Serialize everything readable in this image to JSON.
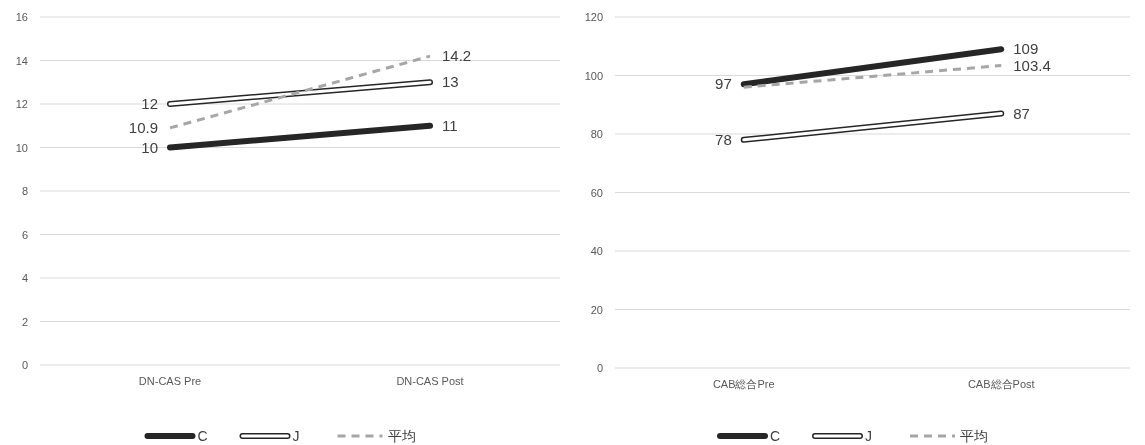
{
  "chart_data": [
    {
      "type": "line",
      "categories": [
        "DN-CAS Pre",
        "DN-CAS Post"
      ],
      "ylim": [
        0,
        16
      ],
      "yticks": [
        0,
        2,
        4,
        6,
        8,
        10,
        12,
        14,
        16
      ],
      "grid": "y",
      "legend": "bottom",
      "data_labels": true,
      "series": [
        {
          "name": "C",
          "color": "#262626",
          "values": [
            10,
            11
          ]
        },
        {
          "name": "J",
          "color": "#ffffff",
          "values": [
            12,
            13
          ]
        },
        {
          "name": "平均",
          "color": "#a6a6a6",
          "line_style": "dashed",
          "values": [
            10.9,
            14.2
          ]
        }
      ]
    },
    {
      "type": "line",
      "categories": [
        "CAB総合Pre",
        "CAB総合Post"
      ],
      "ylim": [
        0,
        120
      ],
      "yticks": [
        0,
        20,
        40,
        60,
        80,
        100,
        120
      ],
      "grid": "y",
      "legend": "bottom",
      "series": [
        {
          "name": "C",
          "color": "#262626",
          "values": [
            97,
            109
          ],
          "value_labels": [
            "97",
            "109"
          ]
        },
        {
          "name": "J",
          "color": "#ffffff",
          "values": [
            78,
            87
          ],
          "value_labels": [
            "78",
            "87"
          ]
        },
        {
          "name": "平均",
          "color": "#a6a6a6",
          "line_style": "dashed",
          "values": [
            96,
            103.4
          ],
          "value_labels": [
            null,
            "103.4"
          ]
        }
      ]
    }
  ]
}
